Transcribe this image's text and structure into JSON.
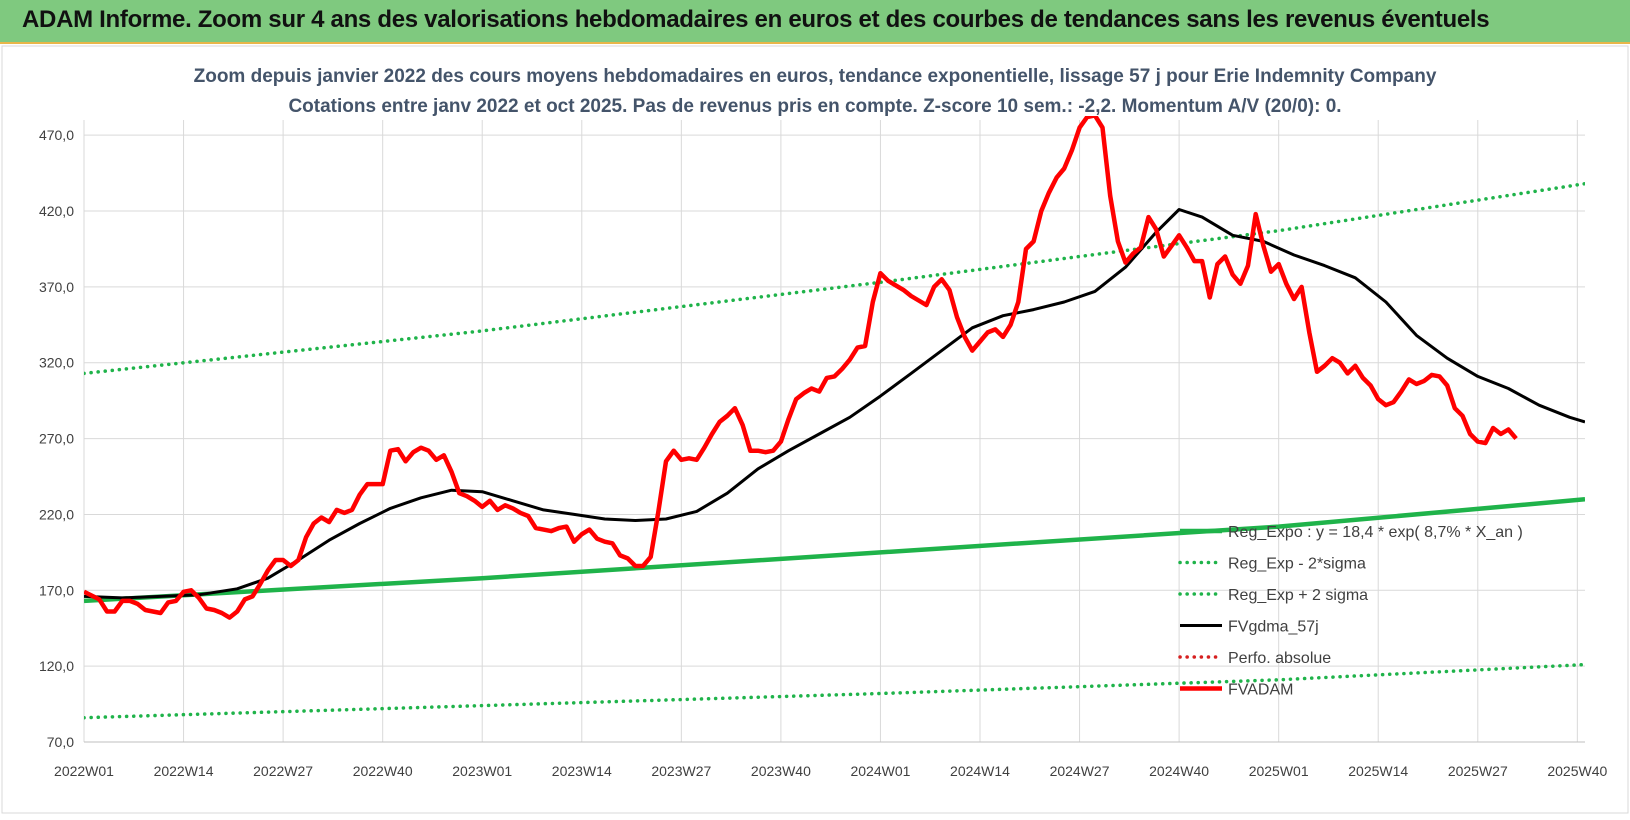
{
  "header": {
    "title": "ADAM Informe. Zoom sur 4 ans des valorisations hebdomadaires en euros et des courbes de tendances sans les revenus éventuels"
  },
  "colors": {
    "header_bg": "#7fc97f",
    "fvadam": "#ff0000",
    "fvgdma": "#000000",
    "reg_expo": "#1fb34a",
    "bands": "#1fb34a",
    "perfo": "#d62020",
    "grid": "#d9d9d9"
  },
  "chart_data": {
    "type": "line",
    "title_line1": "Zoom depuis janvier 2022 des cours moyens hebdomadaires en euros, tendance exponentielle, lissage 57 j pour Erie Indemnity Company",
    "title_line2": "Cotations entre janv 2022 et oct 2025. Pas de revenus pris en compte. Z-score 10 sem.: -2,2.  Momentum A/V (20/0): 0.",
    "xlabel": "",
    "ylabel": "",
    "ylim": [
      70,
      480
    ],
    "y_ticks": [
      "70,0",
      "120,0",
      "170,0",
      "220,0",
      "270,0",
      "320,0",
      "370,0",
      "420,0",
      "470,0"
    ],
    "y_tick_values": [
      70,
      120,
      170,
      220,
      270,
      320,
      370,
      420,
      470
    ],
    "x_range": [
      0,
      196
    ],
    "x_ticks": [
      {
        "label": "2022W01",
        "x": 0
      },
      {
        "label": "2022W14",
        "x": 13
      },
      {
        "label": "2022W27",
        "x": 26
      },
      {
        "label": "2022W40",
        "x": 39
      },
      {
        "label": "2023W01",
        "x": 52
      },
      {
        "label": "2023W14",
        "x": 65
      },
      {
        "label": "2023W27",
        "x": 78
      },
      {
        "label": "2023W40",
        "x": 91
      },
      {
        "label": "2024W01",
        "x": 104
      },
      {
        "label": "2024W14",
        "x": 117
      },
      {
        "label": "2024W27",
        "x": 130
      },
      {
        "label": "2024W40",
        "x": 143
      },
      {
        "label": "2025W01",
        "x": 156
      },
      {
        "label": "2025W14",
        "x": 169
      },
      {
        "label": "2025W27",
        "x": 182
      },
      {
        "label": "2025W40",
        "x": 195
      }
    ],
    "legend": [
      {
        "name": "Reg_Expo : y = 18,4 * exp( 8,7% *  X_an )",
        "style": "solid-thick",
        "color": "#1fb34a"
      },
      {
        "name": "Reg_Exp - 2*sigma",
        "style": "dotted",
        "color": "#1fb34a"
      },
      {
        "name": "Reg_Exp + 2 sigma",
        "style": "dotted",
        "color": "#1fb34a"
      },
      {
        "name": "FVgdma_57j",
        "style": "solid",
        "color": "#000000"
      },
      {
        "name": "Perfo. absolue",
        "style": "dotted",
        "color": "#d62020"
      },
      {
        "name": "FVADAM",
        "style": "solid-thick",
        "color": "#ff0000"
      }
    ],
    "series": [
      {
        "name": "Reg_Expo",
        "points": [
          [
            0,
            163
          ],
          [
            52,
            178
          ],
          [
            104,
            195
          ],
          [
            156,
            212
          ],
          [
            196,
            230
          ]
        ]
      },
      {
        "name": "Reg_Exp - 2*sigma",
        "points": [
          [
            0,
            86
          ],
          [
            52,
            94
          ],
          [
            104,
            102
          ],
          [
            156,
            111
          ],
          [
            196,
            121
          ]
        ]
      },
      {
        "name": "Reg_Exp + 2 sigma",
        "points": [
          [
            0,
            313
          ],
          [
            52,
            341
          ],
          [
            104,
            373
          ],
          [
            156,
            407
          ],
          [
            196,
            438
          ]
        ]
      },
      {
        "name": "FVgdma_57j",
        "points": [
          [
            0,
            166
          ],
          [
            5,
            165
          ],
          [
            10,
            166
          ],
          [
            15,
            167
          ],
          [
            20,
            171
          ],
          [
            24,
            178
          ],
          [
            28,
            190
          ],
          [
            32,
            203
          ],
          [
            36,
            214
          ],
          [
            40,
            224
          ],
          [
            44,
            231
          ],
          [
            48,
            236
          ],
          [
            52,
            235
          ],
          [
            56,
            229
          ],
          [
            60,
            223
          ],
          [
            64,
            220
          ],
          [
            68,
            217
          ],
          [
            72,
            216
          ],
          [
            76,
            217
          ],
          [
            80,
            222
          ],
          [
            84,
            234
          ],
          [
            88,
            250
          ],
          [
            92,
            262
          ],
          [
            96,
            273
          ],
          [
            100,
            284
          ],
          [
            104,
            298
          ],
          [
            108,
            313
          ],
          [
            112,
            328
          ],
          [
            116,
            343
          ],
          [
            120,
            351
          ],
          [
            124,
            355
          ],
          [
            128,
            360
          ],
          [
            132,
            367
          ],
          [
            136,
            383
          ],
          [
            140,
            406
          ],
          [
            143,
            421
          ],
          [
            146,
            416
          ],
          [
            150,
            404
          ],
          [
            154,
            400
          ],
          [
            158,
            391
          ],
          [
            162,
            384
          ],
          [
            166,
            376
          ],
          [
            170,
            360
          ],
          [
            174,
            338
          ],
          [
            178,
            323
          ],
          [
            182,
            311
          ],
          [
            186,
            303
          ],
          [
            190,
            292
          ],
          [
            194,
            284
          ],
          [
            196,
            281
          ]
        ]
      },
      {
        "name": "FVADAM",
        "points": [
          [
            0,
            169
          ],
          [
            2,
            164
          ],
          [
            3,
            156
          ],
          [
            4,
            156
          ],
          [
            5,
            163
          ],
          [
            6,
            163
          ],
          [
            7,
            161
          ],
          [
            8,
            157
          ],
          [
            9,
            156
          ],
          [
            10,
            155
          ],
          [
            11,
            162
          ],
          [
            12,
            163
          ],
          [
            13,
            169
          ],
          [
            14,
            170
          ],
          [
            15,
            165
          ],
          [
            16,
            158
          ],
          [
            17,
            157
          ],
          [
            18,
            155
          ],
          [
            19,
            152
          ],
          [
            20,
            156
          ],
          [
            21,
            164
          ],
          [
            22,
            166
          ],
          [
            23,
            174
          ],
          [
            24,
            183
          ],
          [
            25,
            190
          ],
          [
            26,
            190
          ],
          [
            27,
            186
          ],
          [
            28,
            190
          ],
          [
            29,
            205
          ],
          [
            30,
            214
          ],
          [
            31,
            218
          ],
          [
            32,
            215
          ],
          [
            33,
            223
          ],
          [
            34,
            221
          ],
          [
            35,
            223
          ],
          [
            36,
            233
          ],
          [
            37,
            240
          ],
          [
            38,
            240
          ],
          [
            39,
            240
          ],
          [
            40,
            262
          ],
          [
            41,
            263
          ],
          [
            42,
            255
          ],
          [
            43,
            261
          ],
          [
            44,
            264
          ],
          [
            45,
            262
          ],
          [
            46,
            256
          ],
          [
            47,
            259
          ],
          [
            48,
            248
          ],
          [
            49,
            234
          ],
          [
            50,
            232
          ],
          [
            51,
            229
          ],
          [
            52,
            225
          ],
          [
            53,
            229
          ],
          [
            54,
            223
          ],
          [
            55,
            226
          ],
          [
            56,
            224
          ],
          [
            57,
            221
          ],
          [
            58,
            219
          ],
          [
            59,
            211
          ],
          [
            60,
            210
          ],
          [
            61,
            209
          ],
          [
            62,
            211
          ],
          [
            63,
            212
          ],
          [
            64,
            202
          ],
          [
            65,
            207
          ],
          [
            66,
            210
          ],
          [
            67,
            204
          ],
          [
            68,
            202
          ],
          [
            69,
            201
          ],
          [
            70,
            193
          ],
          [
            71,
            191
          ],
          [
            72,
            186
          ],
          [
            73,
            186
          ],
          [
            74,
            192
          ],
          [
            75,
            222
          ],
          [
            76,
            255
          ],
          [
            77,
            262
          ],
          [
            78,
            256
          ],
          [
            79,
            257
          ],
          [
            80,
            256
          ],
          [
            81,
            264
          ],
          [
            82,
            273
          ],
          [
            83,
            281
          ],
          [
            84,
            285
          ],
          [
            85,
            290
          ],
          [
            86,
            279
          ],
          [
            87,
            262
          ],
          [
            88,
            262
          ],
          [
            89,
            261
          ],
          [
            90,
            262
          ],
          [
            91,
            268
          ],
          [
            92,
            283
          ],
          [
            93,
            296
          ],
          [
            94,
            300
          ],
          [
            95,
            303
          ],
          [
            96,
            301
          ],
          [
            97,
            310
          ],
          [
            98,
            311
          ],
          [
            99,
            316
          ],
          [
            100,
            322
          ],
          [
            101,
            330
          ],
          [
            102,
            331
          ],
          [
            103,
            360
          ],
          [
            104,
            379
          ],
          [
            105,
            374
          ],
          [
            106,
            371
          ],
          [
            107,
            368
          ],
          [
            108,
            364
          ],
          [
            109,
            361
          ],
          [
            110,
            358
          ],
          [
            111,
            370
          ],
          [
            112,
            375
          ],
          [
            113,
            368
          ],
          [
            114,
            350
          ],
          [
            115,
            337
          ],
          [
            116,
            328
          ],
          [
            117,
            334
          ],
          [
            118,
            340
          ],
          [
            119,
            342
          ],
          [
            120,
            337
          ],
          [
            121,
            345
          ],
          [
            122,
            360
          ],
          [
            123,
            395
          ],
          [
            124,
            400
          ],
          [
            125,
            420
          ],
          [
            126,
            432
          ],
          [
            127,
            442
          ],
          [
            128,
            448
          ],
          [
            129,
            460
          ],
          [
            130,
            475
          ],
          [
            131,
            482
          ],
          [
            132,
            483
          ],
          [
            133,
            475
          ],
          [
            134,
            430
          ],
          [
            135,
            400
          ],
          [
            136,
            386
          ],
          [
            137,
            392
          ],
          [
            138,
            396
          ],
          [
            139,
            416
          ],
          [
            140,
            408
          ],
          [
            141,
            390
          ],
          [
            142,
            397
          ],
          [
            143,
            404
          ],
          [
            144,
            396
          ],
          [
            145,
            387
          ],
          [
            146,
            387
          ],
          [
            147,
            363
          ],
          [
            148,
            385
          ],
          [
            149,
            390
          ],
          [
            150,
            378
          ],
          [
            151,
            372
          ],
          [
            152,
            384
          ],
          [
            153,
            418
          ],
          [
            154,
            397
          ],
          [
            155,
            380
          ],
          [
            156,
            385
          ],
          [
            157,
            372
          ],
          [
            158,
            362
          ],
          [
            159,
            370
          ],
          [
            160,
            340
          ],
          [
            161,
            314
          ],
          [
            162,
            318
          ],
          [
            163,
            323
          ],
          [
            164,
            320
          ],
          [
            165,
            313
          ],
          [
            166,
            318
          ],
          [
            167,
            310
          ],
          [
            168,
            305
          ],
          [
            169,
            296
          ],
          [
            170,
            292
          ],
          [
            171,
            294
          ],
          [
            172,
            301
          ],
          [
            173,
            309
          ],
          [
            174,
            306
          ],
          [
            175,
            308
          ],
          [
            176,
            312
          ],
          [
            177,
            311
          ],
          [
            178,
            305
          ],
          [
            179,
            290
          ],
          [
            180,
            285
          ],
          [
            181,
            273
          ],
          [
            182,
            268
          ],
          [
            183,
            267
          ],
          [
            184,
            277
          ],
          [
            185,
            273
          ],
          [
            186,
            276
          ],
          [
            187,
            270
          ]
        ]
      }
    ],
    "legend_position": "bottom-right"
  }
}
